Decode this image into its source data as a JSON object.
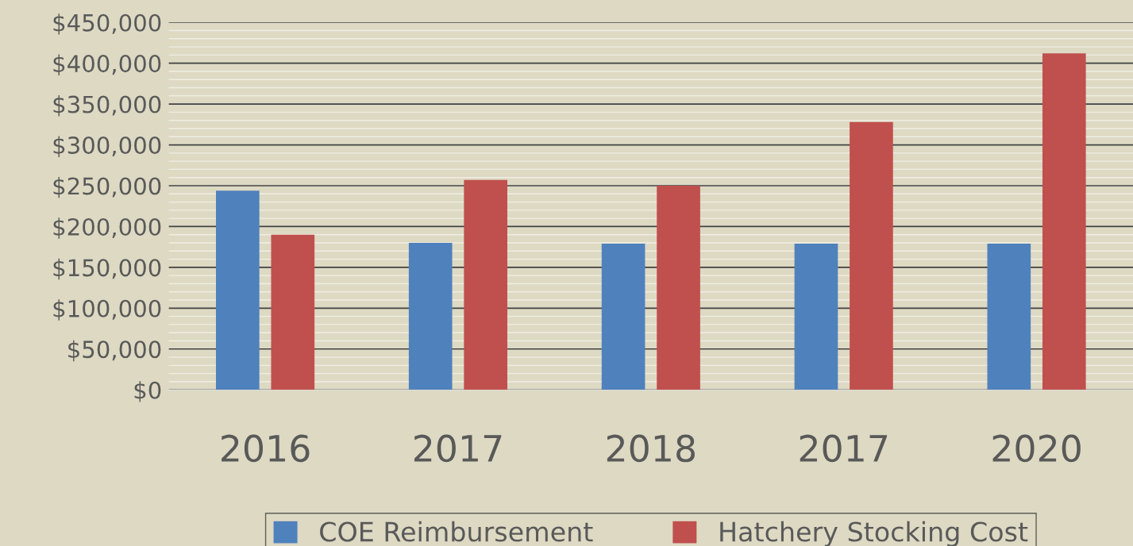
{
  "chart_data": {
    "type": "bar",
    "categories": [
      "2016",
      "2017",
      "2018",
      "2017",
      "2020"
    ],
    "series": [
      {
        "name": "COE Reimbursement",
        "color": "#4f81bd",
        "values": [
          244000,
          180000,
          179000,
          179000,
          179000
        ]
      },
      {
        "name": "Hatchery Stocking Cost",
        "color": "#c0504d",
        "values": [
          190000,
          257000,
          250000,
          328000,
          412000
        ]
      }
    ],
    "ylim": [
      0,
      450000
    ],
    "yticks": [
      {
        "value": 0,
        "label": "$0"
      },
      {
        "value": 50000,
        "label": "$50,000"
      },
      {
        "value": 100000,
        "label": "$100,000"
      },
      {
        "value": 150000,
        "label": "$150,000"
      },
      {
        "value": 200000,
        "label": "$200,000"
      },
      {
        "value": 250000,
        "label": "$250,000"
      },
      {
        "value": 300000,
        "label": "$300,000"
      },
      {
        "value": 350000,
        "label": "$350,000"
      },
      {
        "value": 400000,
        "label": "$400,000"
      },
      {
        "value": 450000,
        "label": "$450,000"
      }
    ],
    "grid": "y",
    "legend": "bottom"
  }
}
